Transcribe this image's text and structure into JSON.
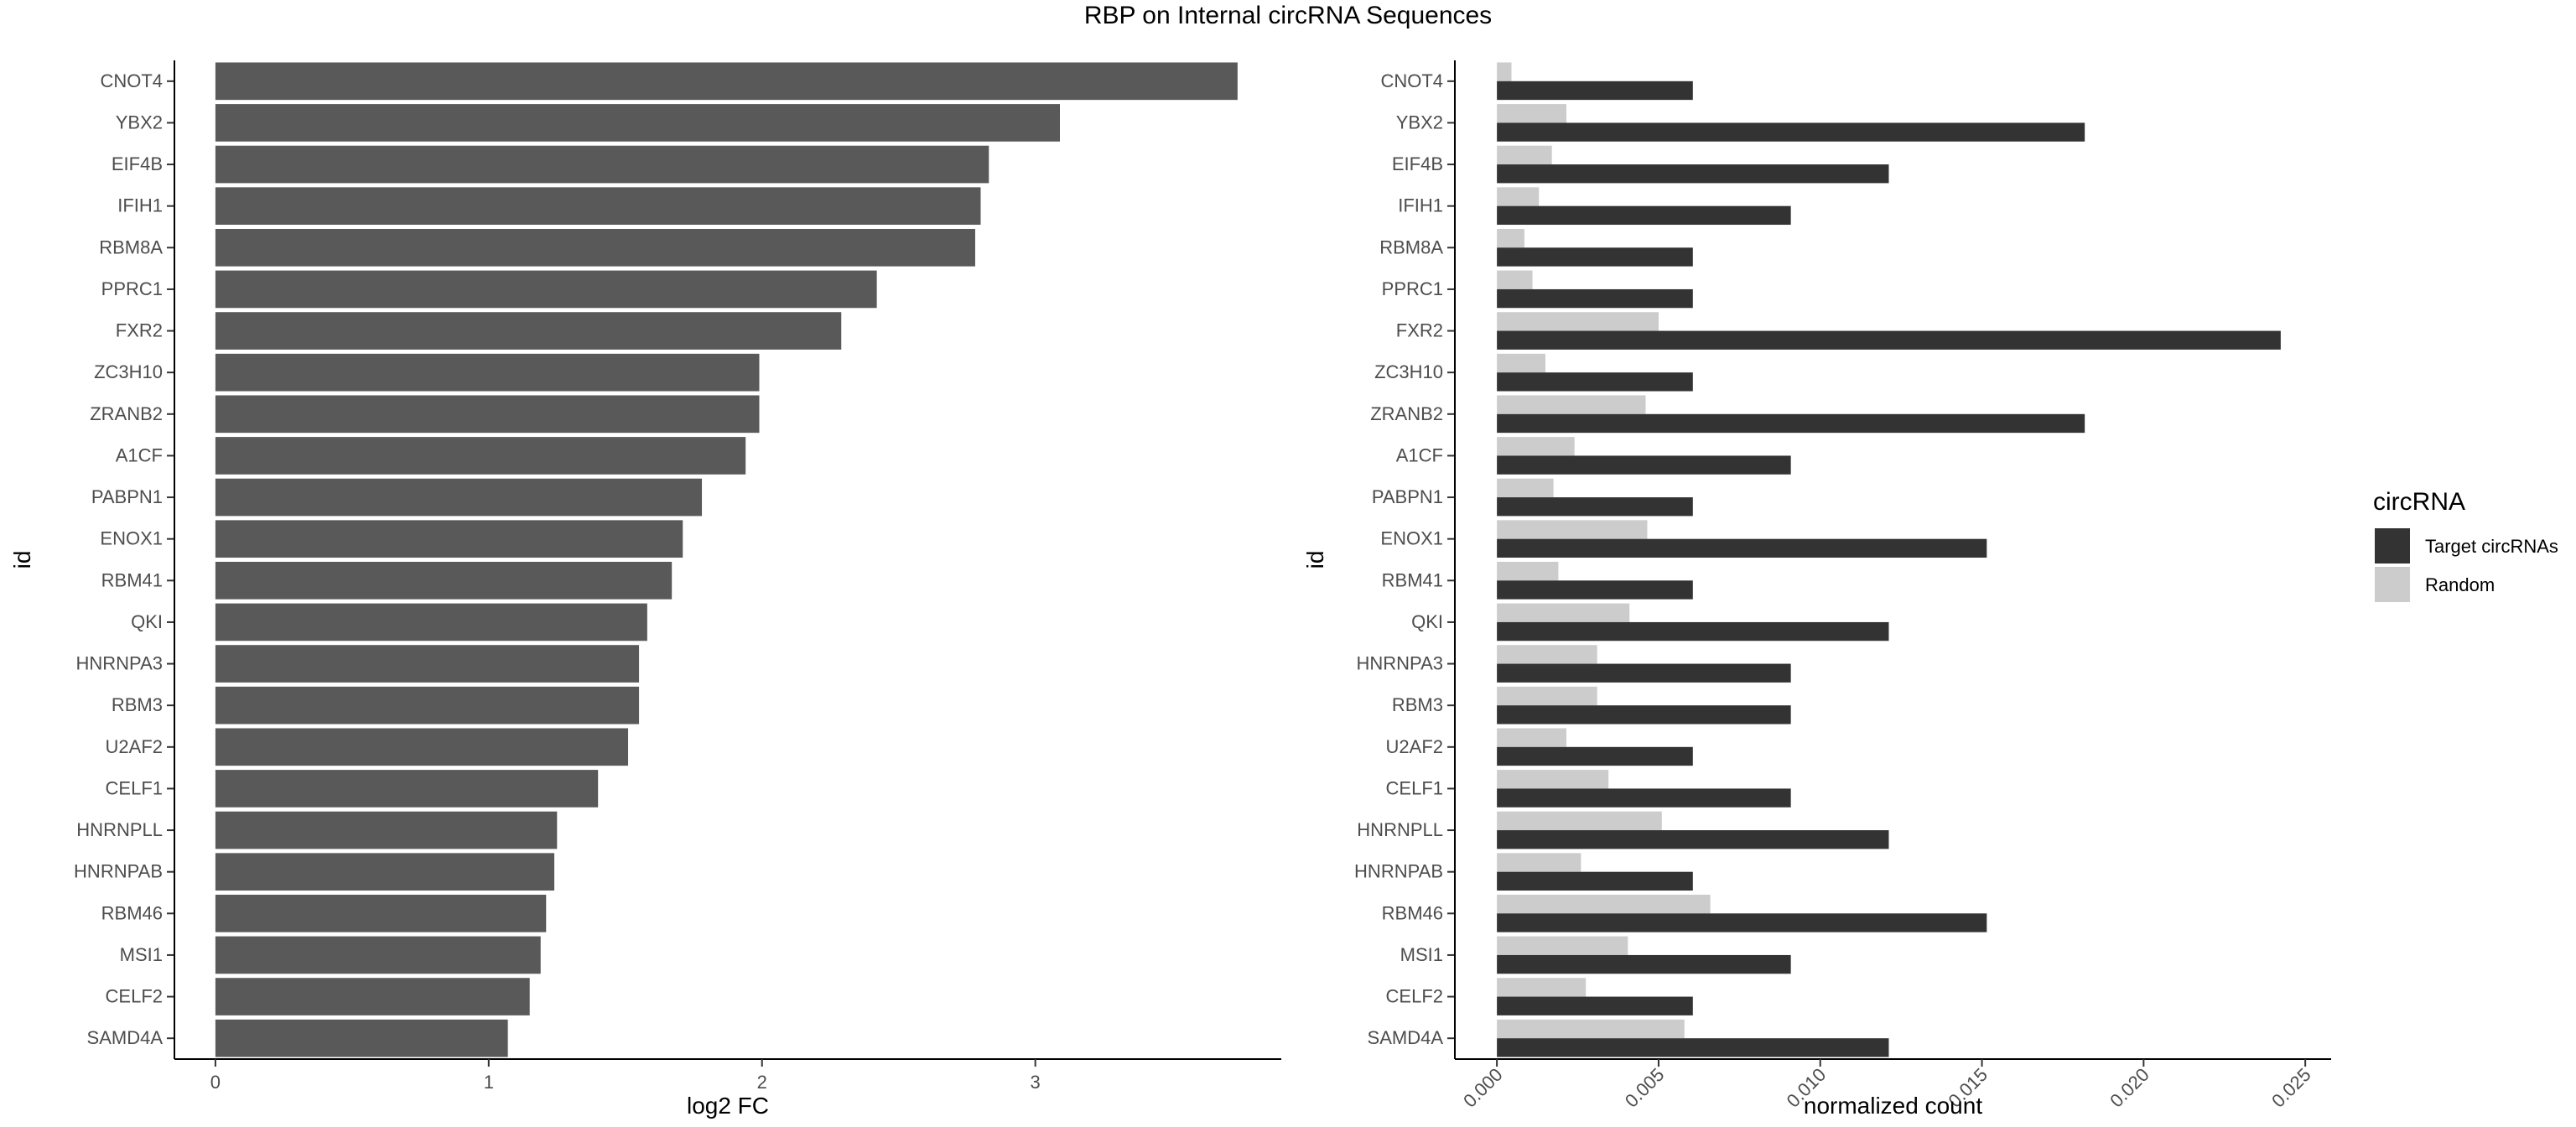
{
  "title": "RBP on Internal circRNA Sequences",
  "chart_data": [
    {
      "type": "bar",
      "orientation": "horizontal",
      "ylabel": "id",
      "xlabel": "log2 FC",
      "xlim": [
        -0.15,
        3.9
      ],
      "xticks": [
        0,
        1,
        2,
        3
      ],
      "grid": false,
      "bar_color": "#595959",
      "categories": [
        "CNOT4",
        "YBX2",
        "EIF4B",
        "IFIH1",
        "RBM8A",
        "PPRC1",
        "FXR2",
        "ZC3H10",
        "ZRANB2",
        "A1CF",
        "PABPN1",
        "ENOX1",
        "RBM41",
        "QKI",
        "HNRNPA3",
        "RBM3",
        "U2AF2",
        "CELF1",
        "HNRNPLL",
        "HNRNPAB",
        "RBM46",
        "MSI1",
        "CELF2",
        "SAMD4A"
      ],
      "values": [
        3.74,
        3.09,
        2.83,
        2.8,
        2.78,
        2.42,
        2.29,
        1.99,
        1.99,
        1.94,
        1.78,
        1.71,
        1.67,
        1.58,
        1.55,
        1.55,
        1.51,
        1.4,
        1.25,
        1.24,
        1.21,
        1.19,
        1.15,
        1.07
      ]
    },
    {
      "type": "bar",
      "orientation": "horizontal",
      "grouped": true,
      "ylabel": "id",
      "xlabel": "normalized count",
      "xlim": [
        -0.0013,
        0.0258
      ],
      "xticks": [
        0.0,
        0.005,
        0.01,
        0.015,
        0.02,
        0.025
      ],
      "xtick_labels": [
        "0.000",
        "0.005",
        "0.010",
        "0.015",
        "0.020",
        "0.025"
      ],
      "grid": false,
      "legend": {
        "title": "circRNA",
        "placement": "right"
      },
      "categories": [
        "CNOT4",
        "YBX2",
        "EIF4B",
        "IFIH1",
        "RBM8A",
        "PPRC1",
        "FXR2",
        "ZC3H10",
        "ZRANB2",
        "A1CF",
        "PABPN1",
        "ENOX1",
        "RBM41",
        "QKI",
        "HNRNPA3",
        "RBM3",
        "U2AF2",
        "CELF1",
        "HNRNPLL",
        "HNRNPAB",
        "RBM46",
        "MSI1",
        "CELF2",
        "SAMD4A"
      ],
      "series": [
        {
          "name": "Target circRNAs",
          "color": "#333333",
          "values": [
            0.00606,
            0.01818,
            0.01212,
            0.00909,
            0.00606,
            0.00606,
            0.02424,
            0.00606,
            0.01818,
            0.00909,
            0.00606,
            0.01515,
            0.00606,
            0.01212,
            0.00909,
            0.00909,
            0.00606,
            0.00909,
            0.01212,
            0.00606,
            0.01515,
            0.00909,
            0.00606,
            0.01212
          ]
        },
        {
          "name": "Random",
          "color": "#cccccc",
          "values": [
            0.00045,
            0.00215,
            0.0017,
            0.0013,
            0.00085,
            0.0011,
            0.005,
            0.0015,
            0.0046,
            0.0024,
            0.00175,
            0.00465,
            0.0019,
            0.0041,
            0.0031,
            0.0031,
            0.00215,
            0.00345,
            0.0051,
            0.0026,
            0.0066,
            0.00405,
            0.00275,
            0.0058
          ]
        }
      ]
    }
  ]
}
